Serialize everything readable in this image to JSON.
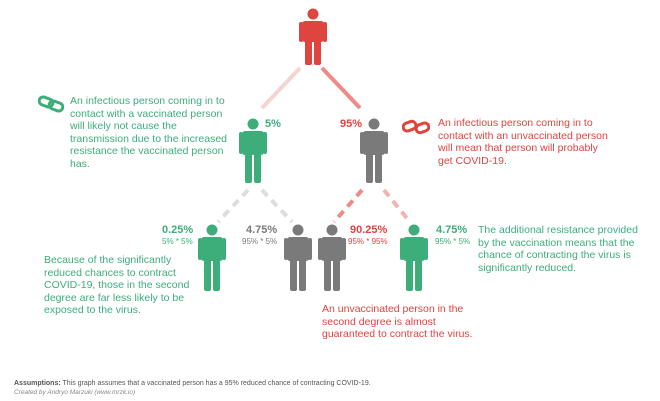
{
  "colors": {
    "infected": "#e0443f",
    "vaccinated": "#3dae7a",
    "unvaccinated": "#7a7a7a",
    "link_vaccinated": "#c7c7c7",
    "link_unvaccinated": "#ef8a86"
  },
  "icons": {
    "person": "person-icon",
    "chain_vaccinated": "chain-link-icon",
    "chain_unvaccinated": "broken-chain-icon"
  },
  "first_degree": {
    "vaccinated": {
      "percent": "5%"
    },
    "unvaccinated": {
      "percent": "95%"
    }
  },
  "second_degree": {
    "vv": {
      "percent": "0.25%",
      "formula": "5% * 5%"
    },
    "vu": {
      "percent": "4.75%",
      "formula": "95% * 5%"
    },
    "uu": {
      "percent": "90.25%",
      "formula": "95% * 95%"
    },
    "uv": {
      "percent": "4.75%",
      "formula": "95% * 5%"
    }
  },
  "notes": {
    "vaccinated_contact": "An infectious person coming in to contact with a vaccinated person will likely not cause the transmission due to the increased resistance the vaccinated person has.",
    "unvaccinated_contact": "An infectious person coming in to contact with an unvaccinated person will mean that person will probably get COVID-19.",
    "second_degree_vaccinated": "Because of the significantly reduced chances to contract COVID-19, those in the second degree are far less likely to be exposed to the virus.",
    "unvaccinated_second_degree": "An unvaccinated person in the second degree is almost guaranteed to contract the virus.",
    "additional_resistance": "The additional resistance provided by the vaccination means that the chance of contracting the virus is significantly reduced."
  },
  "footer": {
    "assumptions_label": "Assumptions:",
    "assumptions_text": " This graph assumes that a vaccinated person has a 95% reduced chance of contracting COVID-19.",
    "credit": "Created by Andryo Marzuki (www.mrzk.io)"
  }
}
